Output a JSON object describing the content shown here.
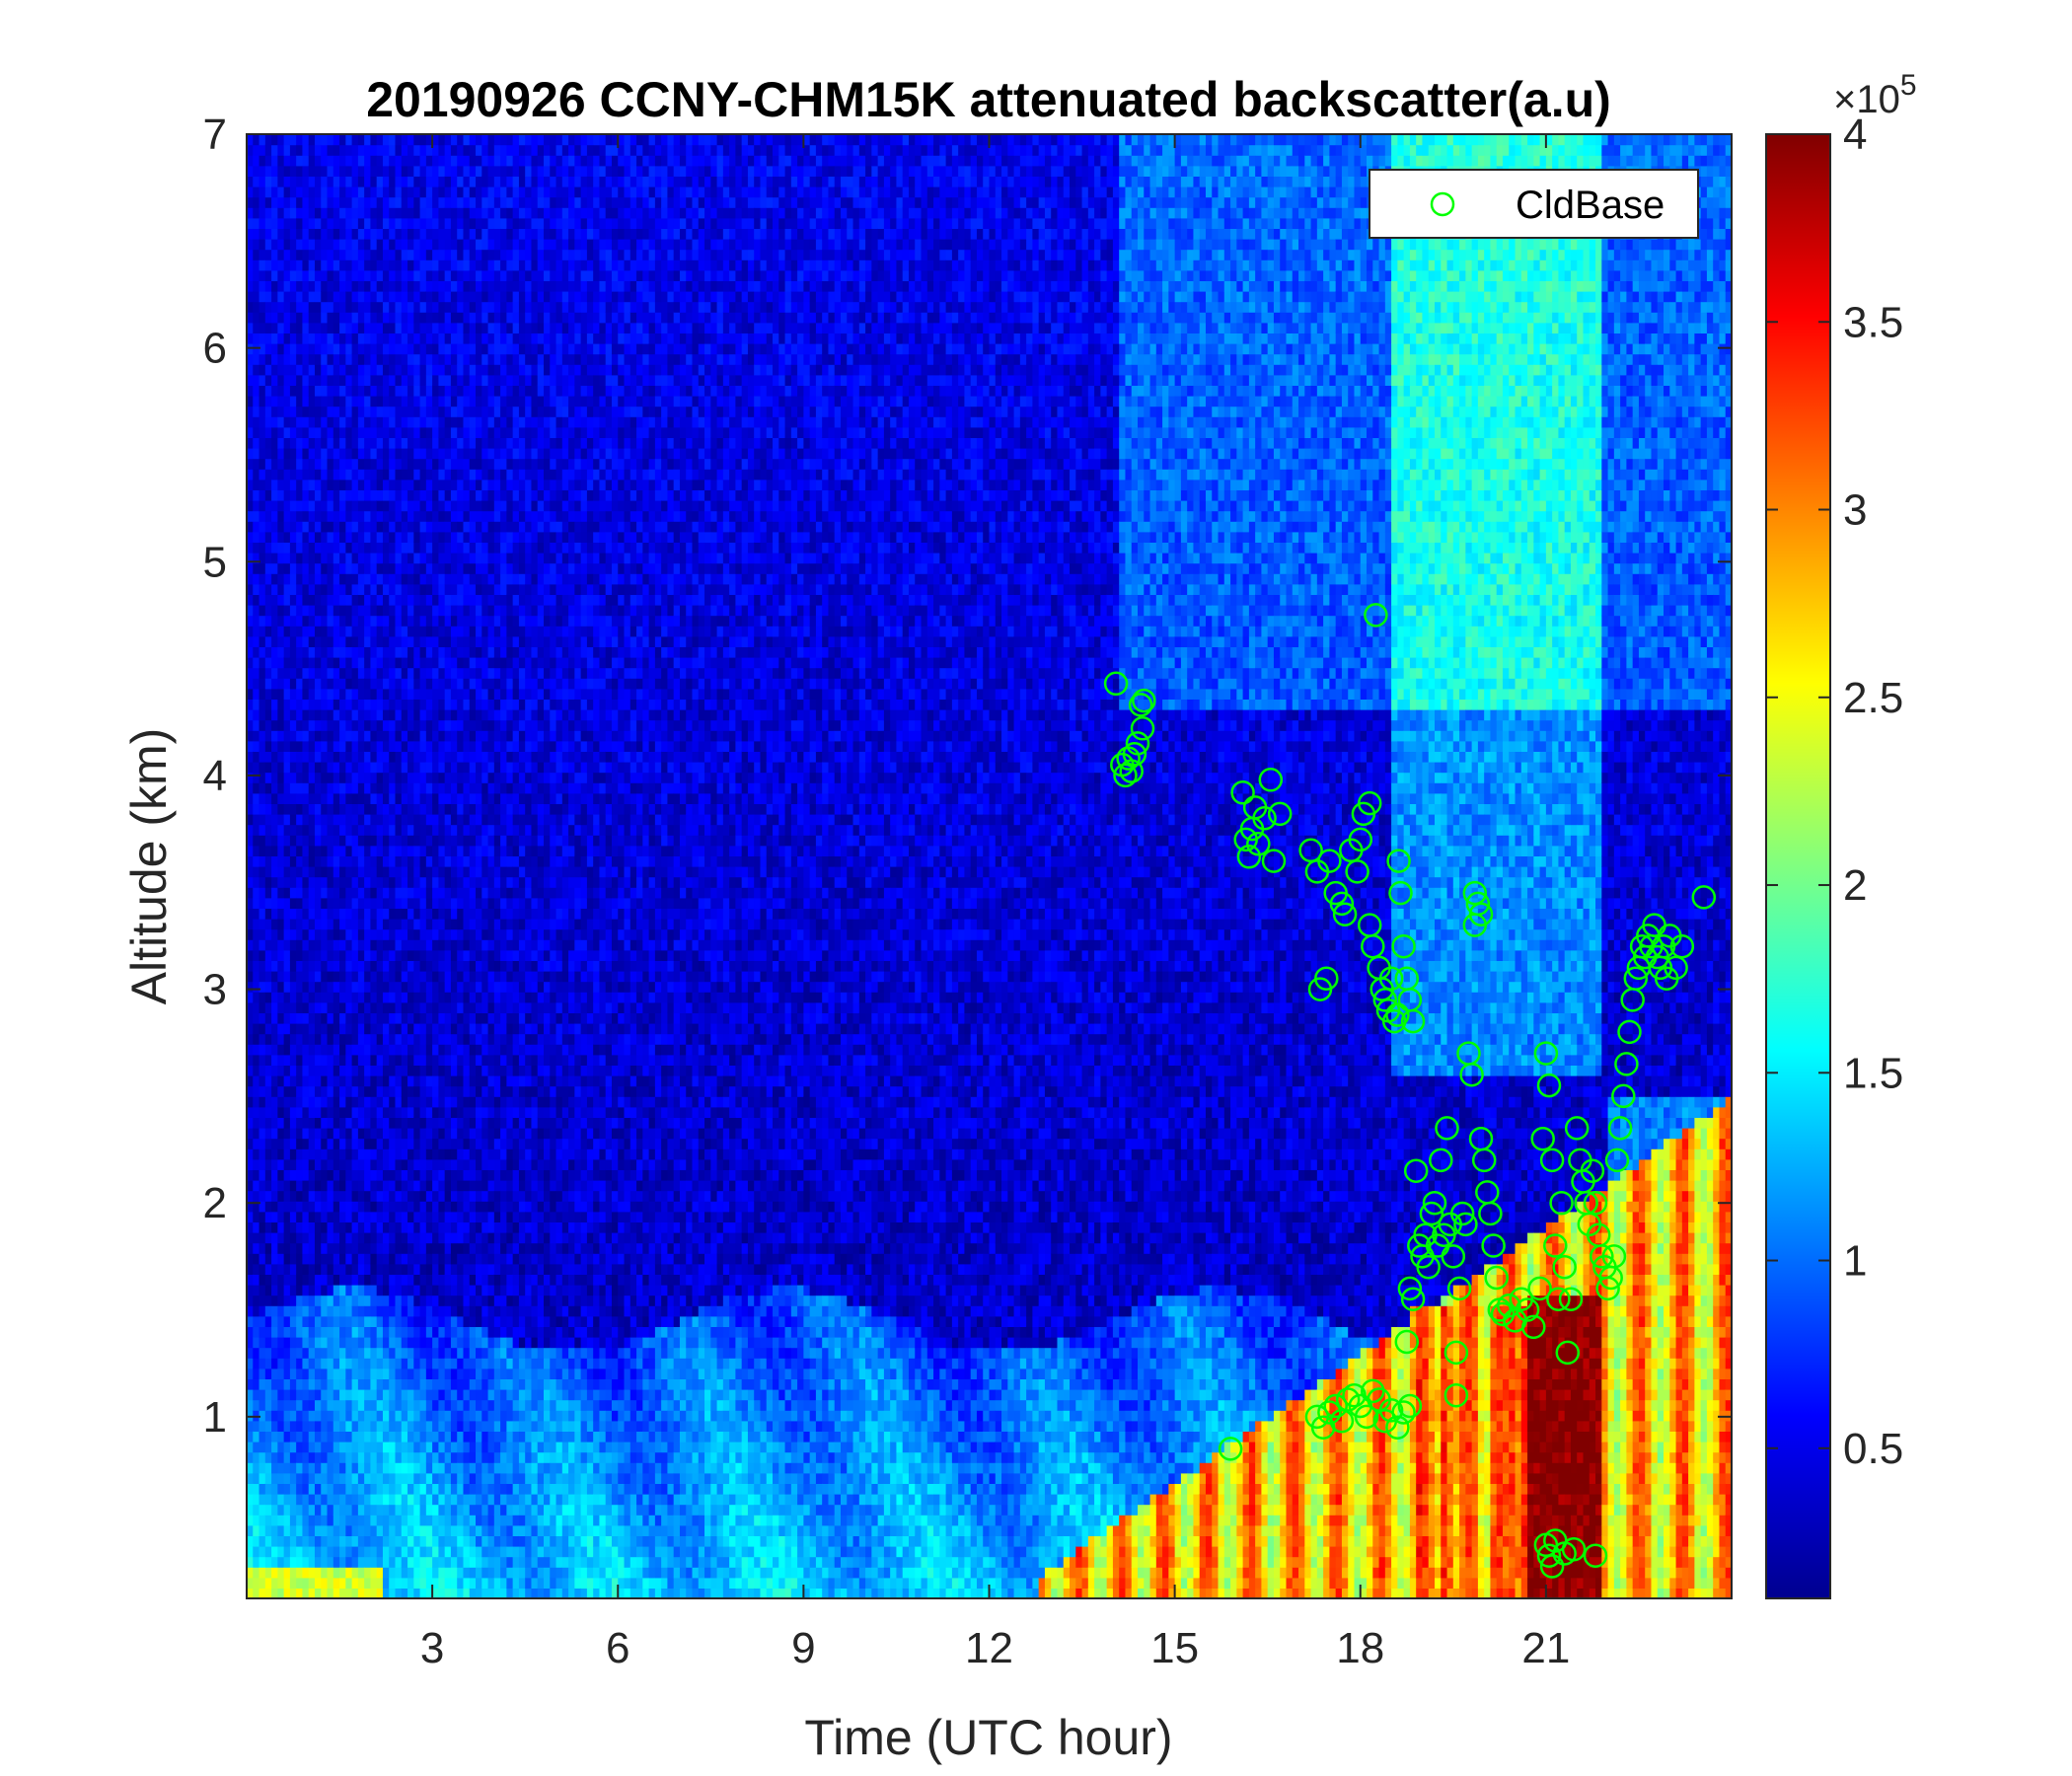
{
  "chart_data": {
    "type": "heatmap",
    "title": "20190926 CCNY-CHM15K attenuated backscatter(a.u)",
    "xlabel": "Time (UTC hour)",
    "ylabel": "Altitude (km)",
    "xlim": [
      0,
      24
    ],
    "ylim": [
      0.15,
      7
    ],
    "xticks": [
      3,
      6,
      9,
      12,
      15,
      18,
      21
    ],
    "yticks": [
      1,
      2,
      3,
      4,
      5,
      6,
      7
    ],
    "colorbar": {
      "colormap": "jet",
      "clim": [
        0.1,
        4
      ],
      "ticks": [
        0.5,
        1,
        1.5,
        2,
        2.5,
        3,
        3.5,
        4
      ],
      "exponent_label": "×10",
      "exponent": "5"
    },
    "legend": {
      "location": "top-right",
      "entries": [
        "CldBase"
      ]
    },
    "series": [
      {
        "name": "CldBase",
        "marker": "circle",
        "color": "#00ff00",
        "points": [
          [
            14.05,
            4.43
          ],
          [
            14.15,
            4.05
          ],
          [
            14.2,
            4.0
          ],
          [
            14.25,
            4.08
          ],
          [
            14.3,
            4.02
          ],
          [
            14.35,
            4.1
          ],
          [
            14.4,
            4.15
          ],
          [
            14.45,
            4.33
          ],
          [
            14.5,
            4.35
          ],
          [
            14.48,
            4.22
          ],
          [
            15.9,
            0.85
          ],
          [
            16.1,
            3.92
          ],
          [
            16.15,
            3.7
          ],
          [
            16.2,
            3.62
          ],
          [
            16.25,
            3.75
          ],
          [
            16.3,
            3.85
          ],
          [
            16.35,
            3.68
          ],
          [
            16.45,
            3.8
          ],
          [
            16.55,
            3.98
          ],
          [
            16.6,
            3.6
          ],
          [
            16.7,
            3.82
          ],
          [
            17.2,
            3.65
          ],
          [
            17.3,
            3.55
          ],
          [
            17.35,
            3.0
          ],
          [
            17.45,
            3.05
          ],
          [
            17.5,
            3.6
          ],
          [
            17.6,
            3.45
          ],
          [
            17.7,
            3.4
          ],
          [
            17.75,
            3.35
          ],
          [
            17.85,
            3.65
          ],
          [
            17.95,
            3.55
          ],
          [
            18.0,
            3.7
          ],
          [
            18.05,
            3.82
          ],
          [
            18.15,
            3.87
          ],
          [
            18.25,
            4.75
          ],
          [
            18.15,
            3.3
          ],
          [
            18.2,
            3.2
          ],
          [
            18.3,
            3.1
          ],
          [
            18.35,
            3.0
          ],
          [
            18.4,
            2.95
          ],
          [
            18.45,
            2.9
          ],
          [
            18.5,
            3.05
          ],
          [
            18.55,
            2.85
          ],
          [
            18.6,
            2.88
          ],
          [
            18.62,
            3.6
          ],
          [
            18.65,
            3.45
          ],
          [
            18.7,
            3.2
          ],
          [
            18.75,
            3.05
          ],
          [
            18.8,
            2.95
          ],
          [
            18.85,
            2.85
          ],
          [
            17.3,
            1.0
          ],
          [
            17.4,
            0.95
          ],
          [
            17.5,
            1.02
          ],
          [
            17.6,
            1.05
          ],
          [
            17.7,
            0.98
          ],
          [
            17.8,
            1.08
          ],
          [
            17.9,
            1.1
          ],
          [
            18.0,
            1.05
          ],
          [
            18.1,
            1.0
          ],
          [
            18.2,
            1.12
          ],
          [
            18.3,
            1.08
          ],
          [
            18.4,
            0.98
          ],
          [
            18.5,
            1.03
          ],
          [
            18.6,
            0.95
          ],
          [
            18.7,
            1.02
          ],
          [
            18.8,
            1.05
          ],
          [
            18.75,
            1.35
          ],
          [
            18.8,
            1.6
          ],
          [
            18.85,
            1.55
          ],
          [
            18.9,
            2.15
          ],
          [
            18.95,
            1.8
          ],
          [
            19.0,
            1.75
          ],
          [
            19.05,
            1.85
          ],
          [
            19.1,
            1.7
          ],
          [
            19.15,
            1.95
          ],
          [
            19.2,
            2.0
          ],
          [
            19.25,
            1.8
          ],
          [
            19.3,
            2.2
          ],
          [
            19.35,
            1.85
          ],
          [
            19.4,
            2.35
          ],
          [
            19.45,
            1.9
          ],
          [
            19.5,
            1.75
          ],
          [
            19.55,
            1.3
          ],
          [
            19.55,
            1.1
          ],
          [
            19.6,
            1.6
          ],
          [
            19.65,
            1.95
          ],
          [
            19.7,
            1.9
          ],
          [
            19.75,
            2.7
          ],
          [
            19.8,
            2.6
          ],
          [
            19.85,
            3.3
          ],
          [
            19.85,
            3.45
          ],
          [
            19.9,
            3.4
          ],
          [
            19.95,
            3.35
          ],
          [
            19.95,
            2.3
          ],
          [
            20.0,
            2.2
          ],
          [
            20.05,
            2.05
          ],
          [
            20.1,
            1.95
          ],
          [
            20.15,
            1.8
          ],
          [
            20.2,
            1.65
          ],
          [
            20.25,
            1.5
          ],
          [
            20.3,
            1.48
          ],
          [
            20.4,
            1.52
          ],
          [
            20.5,
            1.45
          ],
          [
            20.6,
            1.55
          ],
          [
            20.7,
            1.5
          ],
          [
            20.8,
            1.42
          ],
          [
            20.9,
            1.6
          ],
          [
            20.95,
            2.3
          ],
          [
            21.0,
            2.7
          ],
          [
            21.05,
            2.55
          ],
          [
            21.1,
            2.2
          ],
          [
            21.15,
            1.8
          ],
          [
            21.2,
            1.55
          ],
          [
            21.25,
            2.0
          ],
          [
            21.3,
            1.7
          ],
          [
            21.35,
            1.3
          ],
          [
            21.4,
            1.55
          ],
          [
            21.5,
            2.35
          ],
          [
            21.55,
            2.2
          ],
          [
            21.6,
            2.1
          ],
          [
            21.65,
            2.0
          ],
          [
            21.7,
            1.9
          ],
          [
            21.75,
            2.15
          ],
          [
            21.8,
            2.0
          ],
          [
            21.85,
            1.85
          ],
          [
            21.9,
            1.75
          ],
          [
            21.95,
            1.7
          ],
          [
            22.0,
            1.6
          ],
          [
            22.05,
            1.65
          ],
          [
            22.1,
            1.75
          ],
          [
            21.0,
            0.4
          ],
          [
            21.05,
            0.35
          ],
          [
            21.1,
            0.3
          ],
          [
            21.15,
            0.42
          ],
          [
            21.3,
            0.36
          ],
          [
            21.45,
            0.38
          ],
          [
            21.8,
            0.35
          ],
          [
            22.15,
            2.2
          ],
          [
            22.2,
            2.35
          ],
          [
            22.25,
            2.5
          ],
          [
            22.3,
            2.65
          ],
          [
            22.35,
            2.8
          ],
          [
            22.4,
            2.95
          ],
          [
            22.45,
            3.05
          ],
          [
            22.5,
            3.1
          ],
          [
            22.55,
            3.2
          ],
          [
            22.6,
            3.15
          ],
          [
            22.65,
            3.25
          ],
          [
            22.7,
            3.2
          ],
          [
            22.75,
            3.3
          ],
          [
            22.8,
            3.15
          ],
          [
            22.85,
            3.1
          ],
          [
            22.9,
            3.2
          ],
          [
            22.95,
            3.05
          ],
          [
            23.0,
            3.25
          ],
          [
            23.1,
            3.1
          ],
          [
            23.2,
            3.2
          ],
          [
            23.55,
            3.43
          ]
        ]
      }
    ]
  }
}
